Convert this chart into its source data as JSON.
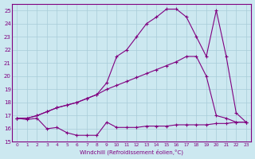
{
  "xlabel": "Windchill (Refroidissement éolien,°C)",
  "bg_color": "#cce8f0",
  "grid_color": "#a8ccd8",
  "line_color": "#800080",
  "xlim": [
    -0.5,
    23.5
  ],
  "ylim": [
    15,
    25.5
  ],
  "yticks": [
    15,
    16,
    17,
    18,
    19,
    20,
    21,
    22,
    23,
    24,
    25
  ],
  "xticks": [
    0,
    1,
    2,
    3,
    4,
    5,
    6,
    7,
    8,
    9,
    10,
    11,
    12,
    13,
    14,
    15,
    16,
    17,
    18,
    19,
    20,
    21,
    22,
    23
  ],
  "line1_x": [
    0,
    1,
    2,
    3,
    4,
    5,
    6,
    7,
    8,
    9,
    10,
    11,
    12,
    13,
    14,
    15,
    16,
    17,
    18,
    19,
    20,
    21,
    22,
    23
  ],
  "line1_y": [
    16.8,
    16.7,
    16.8,
    16.0,
    16.1,
    15.7,
    15.5,
    15.5,
    15.5,
    16.5,
    16.1,
    16.1,
    16.1,
    16.2,
    16.2,
    16.2,
    16.3,
    16.3,
    16.3,
    16.3,
    16.4,
    16.4,
    16.5,
    16.5
  ],
  "line2_x": [
    0,
    1,
    2,
    3,
    4,
    5,
    6,
    7,
    8,
    9,
    10,
    11,
    12,
    13,
    14,
    15,
    16,
    17,
    18,
    19,
    20,
    21,
    22,
    23
  ],
  "line2_y": [
    16.8,
    16.8,
    17.0,
    17.3,
    17.6,
    17.8,
    18.0,
    18.3,
    18.6,
    19.0,
    19.3,
    19.6,
    19.9,
    20.2,
    20.5,
    20.8,
    21.1,
    21.5,
    21.5,
    20.0,
    17.0,
    16.8,
    16.5,
    16.5
  ],
  "line3_x": [
    0,
    1,
    2,
    3,
    4,
    5,
    6,
    7,
    8,
    9,
    10,
    11,
    12,
    13,
    14,
    15,
    16,
    17,
    18,
    19,
    20,
    21,
    22,
    23
  ],
  "line3_y": [
    16.8,
    16.8,
    17.0,
    17.3,
    17.6,
    17.8,
    18.0,
    18.3,
    18.6,
    19.5,
    21.5,
    22.0,
    23.0,
    24.0,
    24.5,
    25.1,
    25.1,
    24.5,
    23.0,
    21.5,
    25.0,
    21.5,
    17.2,
    16.5
  ]
}
